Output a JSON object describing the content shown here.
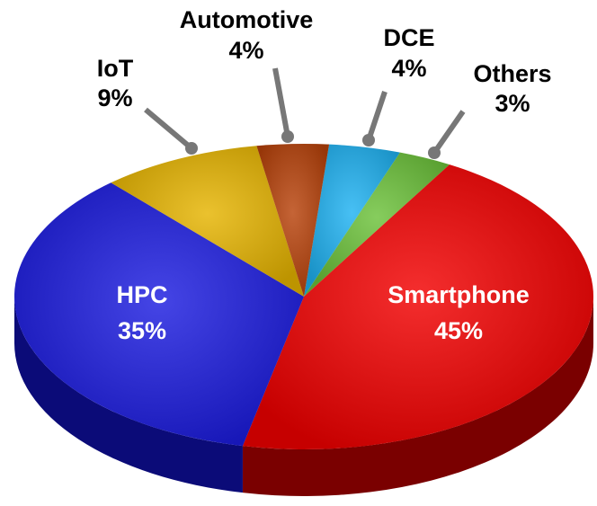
{
  "chart_data": {
    "type": "pie",
    "categories": [
      "DCE",
      "Others",
      "Smartphone",
      "HPC",
      "IoT",
      "Automotive"
    ],
    "values": [
      4,
      3,
      45,
      35,
      9,
      4
    ],
    "value_labels": [
      "4%",
      "3%",
      "45%",
      "35%",
      "9%",
      "4%"
    ],
    "colors": [
      "#1fb2f2",
      "#6cc23a",
      "#f20000",
      "#1c1ce0",
      "#e6b400",
      "#b8420a"
    ],
    "side_colors": [
      "#0c6f9a",
      "#3f7a1c",
      "#7a0000",
      "#0b0b78",
      "#8a6a00",
      "#6a2200"
    ]
  }
}
